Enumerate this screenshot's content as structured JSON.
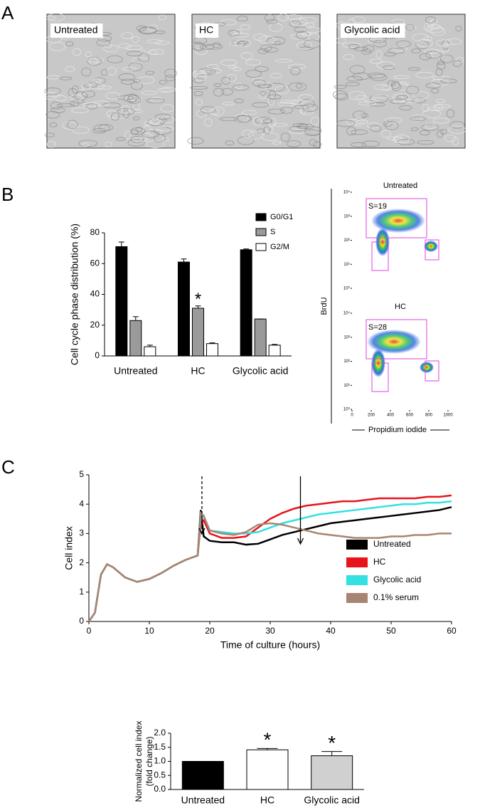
{
  "panel_labels": [
    "A",
    "B",
    "C"
  ],
  "micrographs": [
    "Untreated",
    "HC",
    "Glycolic acid"
  ],
  "chart_data": [
    {
      "type": "bar",
      "ylabel": "Cell cycle phase distribution (%)",
      "categories": [
        "Untreated",
        "HC",
        "Glycolic acid"
      ],
      "series": [
        {
          "name": "G0/G1",
          "color": "#000000",
          "values": [
            71,
            61,
            69
          ],
          "errors": [
            3,
            2,
            0.5
          ]
        },
        {
          "name": "S",
          "color": "#9a9a9a",
          "values": [
            23,
            31,
            24
          ],
          "errors": [
            2.5,
            1.5,
            0
          ]
        },
        {
          "name": "G2/M",
          "color": "#ffffff",
          "values": [
            6,
            8,
            7
          ],
          "errors": [
            1,
            0.5,
            0.5
          ]
        }
      ],
      "ylim": [
        0,
        80
      ],
      "yticks": [
        0,
        20,
        40,
        60,
        80
      ],
      "annotations": [
        {
          "text": "*",
          "x": "HC",
          "series": "S"
        }
      ]
    },
    {
      "type": "flow",
      "ylabel": "BrdU",
      "xlabel": "Propidium iodide",
      "xlim": [
        0,
        1000
      ],
      "xticks": [
        0,
        200,
        400,
        600,
        800,
        1000
      ],
      "ylim": [
        1,
        10000
      ],
      "log_y": true,
      "yticks": [
        {
          "value": 1,
          "label": "10⁰"
        },
        {
          "value": 10,
          "label": "10¹"
        },
        {
          "value": 100,
          "label": "10²"
        },
        {
          "value": 1000,
          "label": "10³"
        },
        {
          "value": 10000,
          "label": "10⁴"
        }
      ],
      "panels": [
        {
          "title": "Untreated",
          "gate_label": "S=19"
        },
        {
          "title": "HC",
          "gate_label": "S=28"
        }
      ]
    },
    {
      "type": "line",
      "xlabel": "Time of culture (hours)",
      "ylabel": "Cell index",
      "x": [
        0,
        1,
        2,
        3,
        4,
        6,
        8,
        10,
        12,
        14,
        16,
        18,
        18.5,
        19,
        20,
        22,
        24,
        26,
        28,
        30,
        32,
        34,
        36,
        38,
        40,
        42,
        44,
        46,
        48,
        50,
        52,
        54,
        56,
        58,
        60
      ],
      "series": [
        {
          "name": "Untreated",
          "color": "#000000",
          "values": [
            0,
            0.3,
            1.6,
            1.95,
            1.85,
            1.5,
            1.35,
            1.45,
            1.65,
            1.9,
            2.1,
            2.25,
            3.8,
            2.9,
            2.75,
            2.7,
            2.7,
            2.62,
            2.65,
            2.8,
            2.95,
            3.05,
            3.15,
            3.25,
            3.35,
            3.4,
            3.45,
            3.5,
            3.55,
            3.6,
            3.65,
            3.7,
            3.75,
            3.8,
            3.9
          ]
        },
        {
          "name": "HC",
          "color": "#e8141b",
          "values": [
            0,
            0.3,
            1.6,
            1.95,
            1.85,
            1.5,
            1.35,
            1.45,
            1.65,
            1.9,
            2.1,
            2.25,
            3.3,
            3.45,
            3.0,
            2.85,
            2.85,
            2.9,
            3.2,
            3.5,
            3.7,
            3.85,
            3.95,
            4.0,
            4.05,
            4.1,
            4.1,
            4.15,
            4.2,
            4.2,
            4.2,
            4.2,
            4.25,
            4.25,
            4.3
          ]
        },
        {
          "name": "Glycolic acid",
          "color": "#35e0e0",
          "values": [
            0,
            0.3,
            1.6,
            1.95,
            1.85,
            1.5,
            1.35,
            1.45,
            1.65,
            1.9,
            2.1,
            2.25,
            3.5,
            3.6,
            3.1,
            3.05,
            3.0,
            3.0,
            3.05,
            3.2,
            3.35,
            3.45,
            3.55,
            3.65,
            3.7,
            3.75,
            3.8,
            3.85,
            3.9,
            3.95,
            4.0,
            4.0,
            4.05,
            4.05,
            4.1
          ]
        },
        {
          "name": "0.1% serum",
          "color": "#a88572",
          "values": [
            0,
            0.3,
            1.6,
            1.95,
            1.85,
            1.5,
            1.35,
            1.45,
            1.65,
            1.9,
            2.1,
            2.25,
            3.7,
            3.6,
            3.1,
            3.0,
            2.95,
            3.05,
            3.3,
            3.35,
            3.3,
            3.2,
            3.1,
            3.0,
            2.95,
            2.9,
            2.85,
            2.85,
            2.85,
            2.9,
            2.9,
            2.95,
            2.95,
            3.0,
            3.0
          ]
        }
      ],
      "xlim": [
        0,
        60
      ],
      "xticks": [
        0,
        10,
        20,
        30,
        40,
        50,
        60
      ],
      "ylim": [
        0,
        5
      ],
      "yticks": [
        0,
        1,
        2,
        3,
        4,
        5
      ],
      "arrows": [
        {
          "x": 18.7,
          "style": "dashed"
        },
        {
          "x": 35,
          "style": "solid"
        }
      ]
    },
    {
      "type": "bar",
      "ylabel_lines": [
        "Normalized cell index",
        "(fold change)"
      ],
      "categories": [
        "Untreated",
        "HC",
        "Glycolic acid"
      ],
      "values": [
        1.0,
        1.41,
        1.2
      ],
      "errors": [
        0,
        0.05,
        0.15
      ],
      "colors": [
        "#000000",
        "#ffffff",
        "#d0d0d0"
      ],
      "ylim": [
        0,
        2
      ],
      "yticks": [
        {
          "value": 0,
          "label": "0.0"
        },
        {
          "value": 0.5,
          "label": "0.5"
        },
        {
          "value": 1,
          "label": "1.0"
        },
        {
          "value": 1.5,
          "label": "1.5"
        },
        {
          "value": 2,
          "label": "2.0"
        }
      ],
      "annotations": [
        {
          "text": "*",
          "x": "HC"
        },
        {
          "text": "*",
          "x": "Glycolic acid"
        }
      ]
    }
  ]
}
